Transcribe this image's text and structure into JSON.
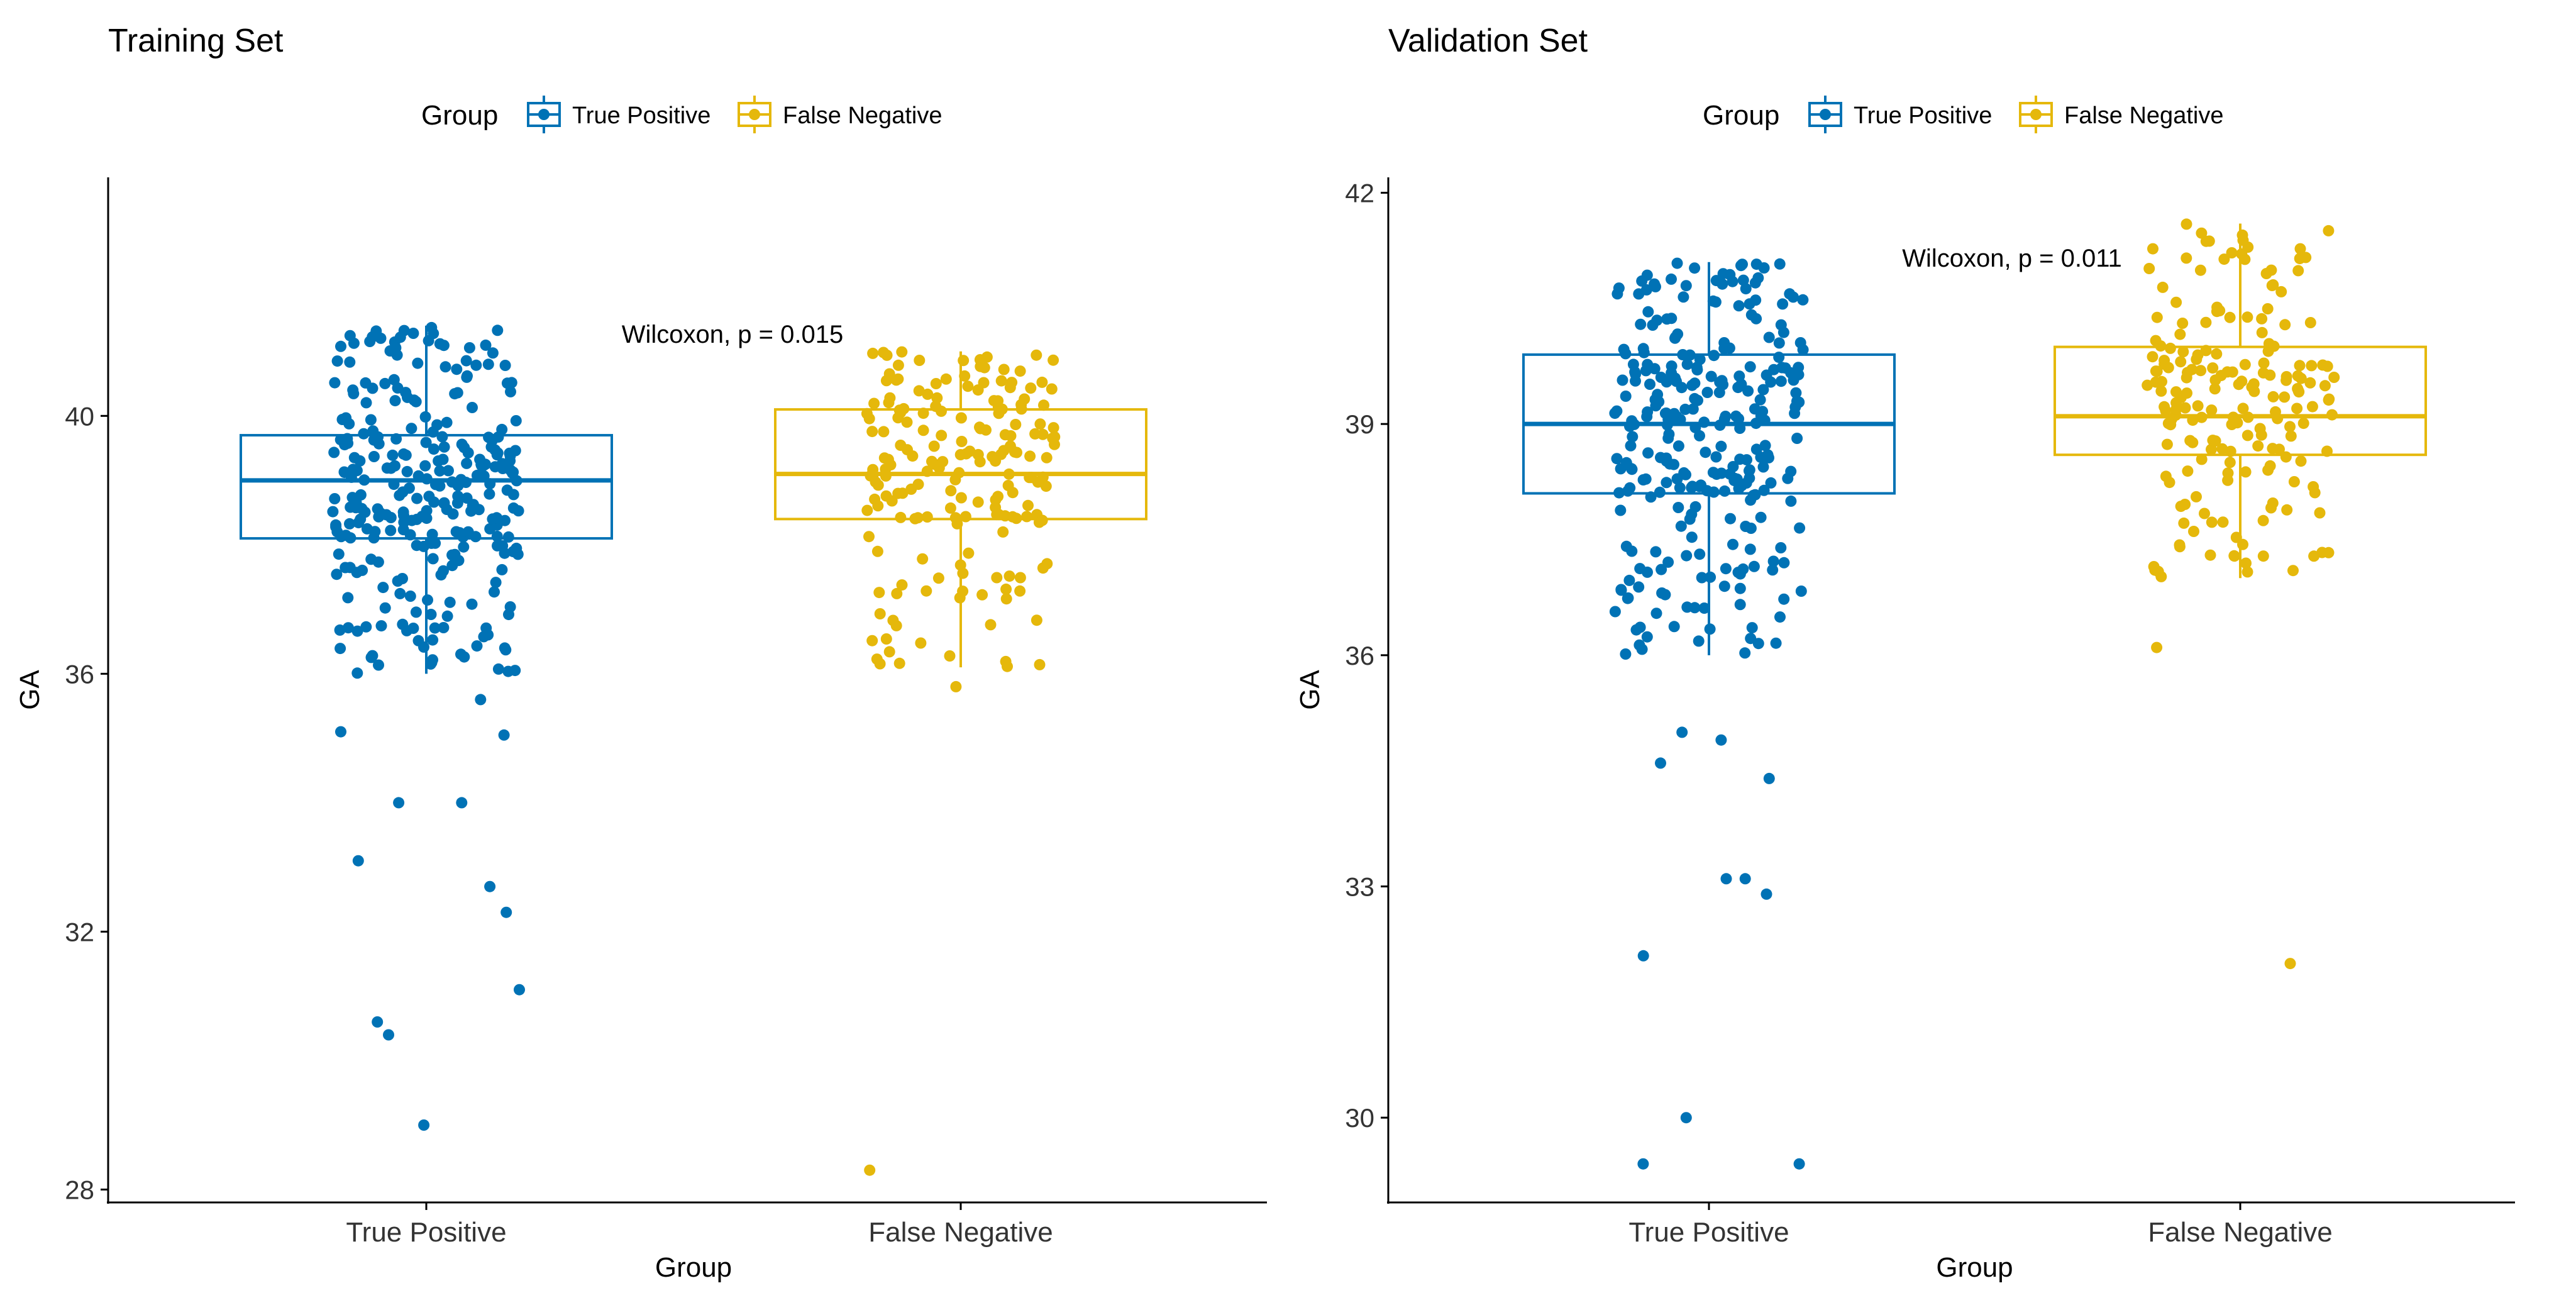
{
  "chart_data": [
    {
      "type": "box-jitter",
      "title": "Training Set",
      "xlabel": "Group",
      "ylabel": "GA",
      "ylim": [
        27.8,
        43.7
      ],
      "yticks": [
        28,
        32,
        36,
        40
      ],
      "categories": [
        "True Positive",
        "False Negative"
      ],
      "legend": {
        "title": "Group",
        "entries": [
          "True Positive",
          "False Negative"
        ],
        "position": "top"
      },
      "annotation": "Wilcoxon, p = 0.015",
      "series": [
        {
          "name": "True Positive",
          "color": "#0072B5",
          "box": {
            "whisker_low": 36.0,
            "q1": 38.1,
            "median": 39.0,
            "q3": 39.7,
            "whisker_high": 41.4
          },
          "outliers": [
            35.6,
            35.1,
            35.05,
            34.0,
            34.0,
            33.1,
            32.7,
            32.3,
            31.1,
            30.6,
            30.4,
            29.0
          ]
        },
        {
          "name": "False Negative",
          "color": "#E5B80B",
          "box": {
            "whisker_low": 36.1,
            "q1": 38.4,
            "median": 39.1,
            "q3": 40.1,
            "whisker_high": 41.0
          },
          "outliers": [
            35.8,
            28.3
          ]
        }
      ]
    },
    {
      "type": "box-jitter",
      "title": "Validation Set",
      "xlabel": "Group",
      "ylabel": "GA",
      "ylim": [
        28.9,
        42.2
      ],
      "yticks": [
        30,
        33,
        36,
        39,
        42
      ],
      "categories": [
        "True Positive",
        "False Negative"
      ],
      "legend": {
        "title": "Group",
        "entries": [
          "True Positive",
          "False Negative"
        ],
        "position": "top"
      },
      "annotation": "Wilcoxon, p = 0.011",
      "series": [
        {
          "name": "True Positive",
          "color": "#0072B5",
          "box": {
            "whisker_low": 36.0,
            "q1": 38.1,
            "median": 39.0,
            "q3": 39.9,
            "whisker_high": 41.1
          },
          "outliers": [
            35.0,
            34.9,
            34.6,
            34.4,
            33.1,
            33.1,
            32.9,
            32.1,
            30.0,
            29.4,
            29.4
          ]
        },
        {
          "name": "False Negative",
          "color": "#E5B80B",
          "box": {
            "whisker_low": 37.0,
            "q1": 38.6,
            "median": 39.1,
            "q3": 40.0,
            "whisker_high": 41.6
          },
          "outliers": [
            36.1,
            32.0
          ]
        }
      ]
    }
  ]
}
